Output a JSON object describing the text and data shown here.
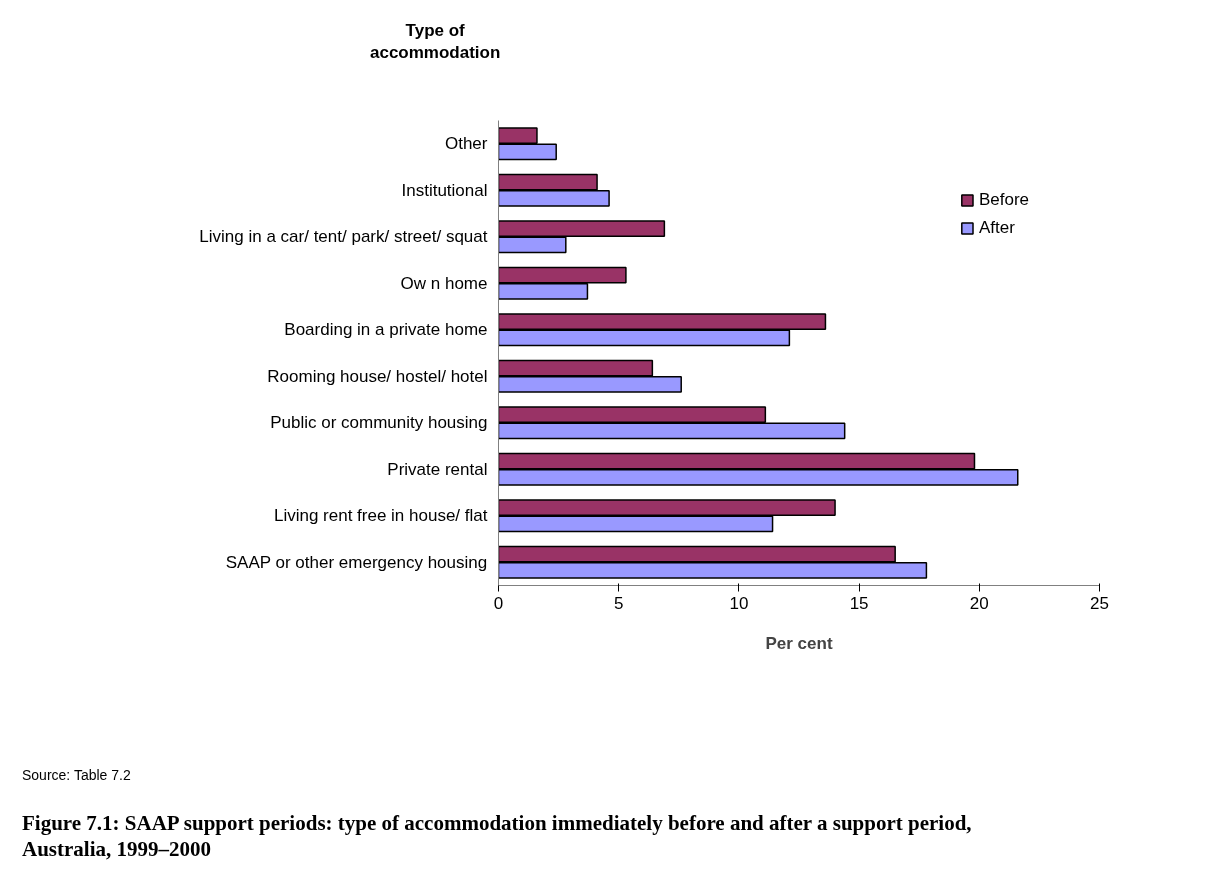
{
  "chart_data": {
    "type": "bar",
    "orientation": "horizontal",
    "title": "Figure 7.1: SAAP support periods: type of accommodation immediately before and after a support period, Australia, 1999–2000",
    "xlabel": "Per cent",
    "ylabel": "Type of accommodation",
    "annotations": [
      "Source: Table 7.2"
    ],
    "categories": [
      "Other",
      "Institutional",
      "Living in a car/ tent/ park/ street/ squat",
      "Ow n home",
      "Boarding in a private home",
      "Rooming house/ hostel/ hotel",
      "Public or community housing",
      "Private rental",
      "Living rent free in house/ flat",
      "SAAP or other emergency housing"
    ],
    "series": [
      {
        "name": "Before",
        "color": "#993366",
        "values": [
          1.6,
          4.1,
          6.9,
          5.3,
          13.6,
          6.4,
          11.1,
          19.8,
          14.0,
          16.5
        ]
      },
      {
        "name": "After",
        "color": "#9999ff",
        "values": [
          2.4,
          4.6,
          2.8,
          3.7,
          12.1,
          7.6,
          14.4,
          21.6,
          11.4,
          17.8
        ]
      }
    ],
    "xlim": [
      0,
      25
    ],
    "xticks": [
      0,
      5,
      10,
      15,
      20,
      25
    ],
    "grid": false,
    "legend": "top right"
  }
}
